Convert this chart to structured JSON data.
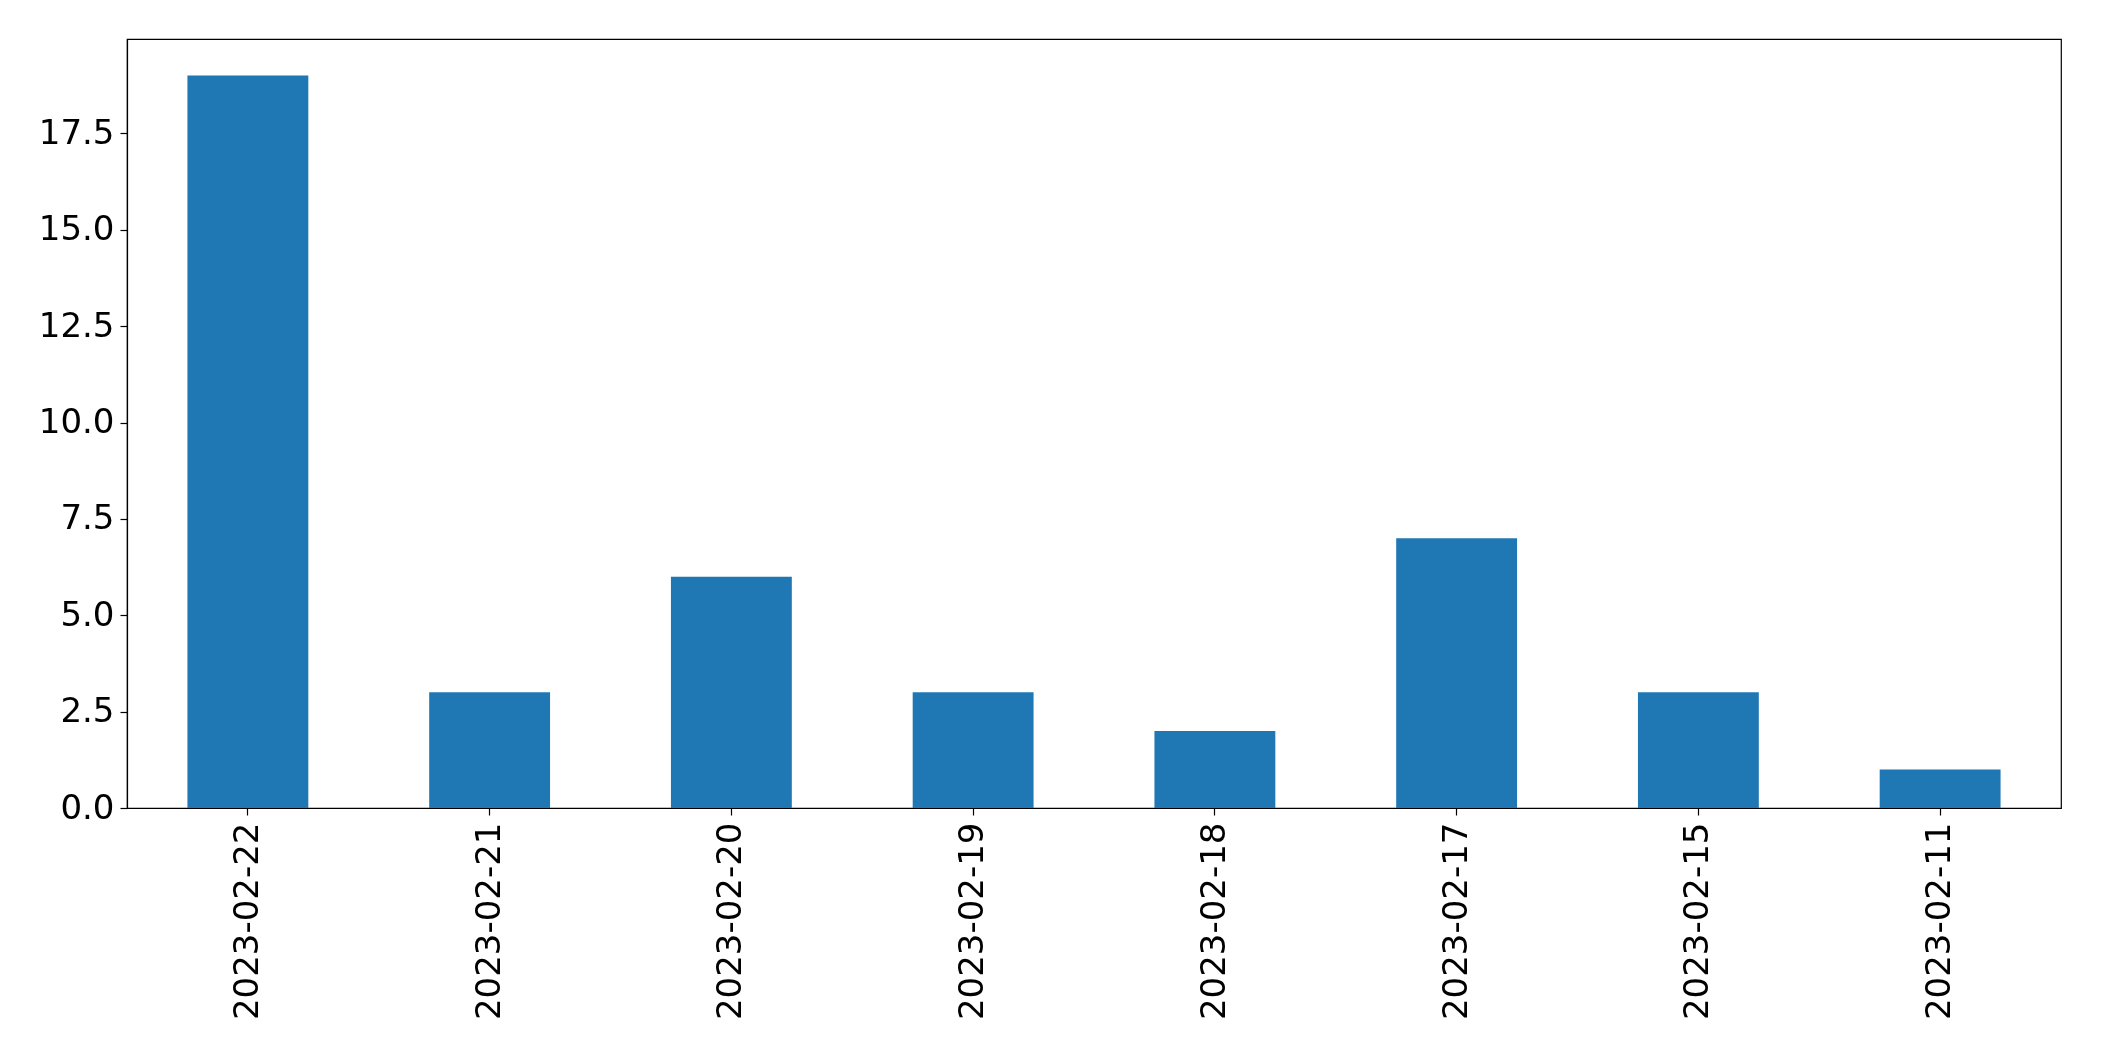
{
  "chart_data": {
    "type": "bar",
    "categories": [
      "2023-02-22",
      "2023-02-21",
      "2023-02-20",
      "2023-02-19",
      "2023-02-18",
      "2023-02-17",
      "2023-02-15",
      "2023-02-11"
    ],
    "values": [
      19,
      3,
      6,
      3,
      2,
      7,
      3,
      1
    ],
    "color": "#1f77b4",
    "ylim": [
      0,
      19.95
    ],
    "yticks": [
      {
        "value": 0,
        "label": "0.0"
      },
      2.5,
      {
        "value": 5,
        "label": "5.0"
      },
      7.5,
      {
        "value": 10,
        "label": "10.0"
      },
      12.5,
      {
        "value": 15,
        "label": "15.0"
      },
      17.5
    ]
  }
}
